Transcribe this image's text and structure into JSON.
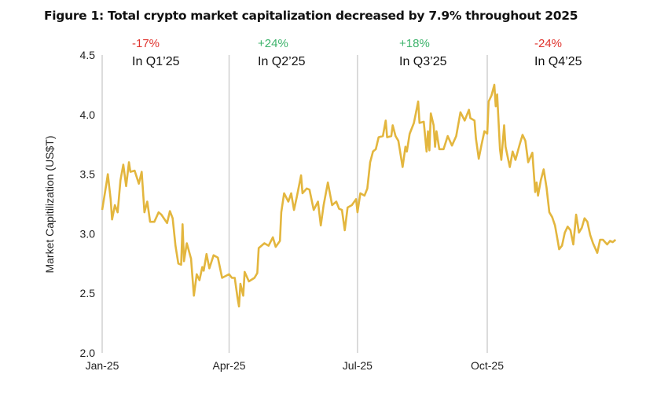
{
  "title": "Figure 1: Total crypto market capitalization decreased by 7.9% throughout 2025",
  "colors": {
    "line": "#E3B63E",
    "negative": "#E0342E",
    "positive": "#3DB36B",
    "quarter_line": "#D0D0D0"
  },
  "chart_data": {
    "type": "line",
    "title": "Figure 1: Total crypto market capitalization decreased by 7.9% throughout 2025",
    "xlabel": "",
    "ylabel": "Market Capitilization (US$T)",
    "ylim": [
      2.0,
      4.5
    ],
    "yticks": [
      "2.0",
      "2.5",
      "3.0",
      "3.5",
      "4.0",
      "4.5"
    ],
    "xlim": [
      "2025-01-01",
      "2025-12-31"
    ],
    "xticks": [
      {
        "date": "2025-01-01",
        "label": "Jan-25"
      },
      {
        "date": "2025-04-01",
        "label": "Apr-25"
      },
      {
        "date": "2025-07-01",
        "label": "Jul-25"
      },
      {
        "date": "2025-10-01",
        "label": "Oct-25"
      }
    ],
    "grid": false,
    "annotations": [
      {
        "change": "-17%",
        "label": "In Q1’25",
        "sign": "negative"
      },
      {
        "change": "+24%",
        "label": "In Q2’25",
        "sign": "positive"
      },
      {
        "change": "+18%",
        "label": "In Q3’25",
        "sign": "positive"
      },
      {
        "change": "-24%",
        "label": "In Q4’25",
        "sign": "negative"
      }
    ],
    "series": [
      {
        "x": [
          "2025-01-01",
          "2025-01-04",
          "2025-01-05",
          "2025-01-07",
          "2025-01-08",
          "2025-01-10",
          "2025-01-12",
          "2025-01-14",
          "2025-01-16",
          "2025-01-18",
          "2025-01-20",
          "2025-01-21",
          "2025-01-24",
          "2025-01-27",
          "2025-01-29",
          "2025-01-31",
          "2025-02-02",
          "2025-02-04",
          "2025-02-07",
          "2025-02-10",
          "2025-02-12",
          "2025-02-16",
          "2025-02-18",
          "2025-02-20",
          "2025-02-22",
          "2025-02-24",
          "2025-02-26",
          "2025-02-27",
          "2025-02-28",
          "2025-03-02",
          "2025-03-05",
          "2025-03-07",
          "2025-03-09",
          "2025-03-11",
          "2025-03-13",
          "2025-03-14",
          "2025-03-16",
          "2025-03-18",
          "2025-03-21",
          "2025-03-24",
          "2025-03-27",
          "2025-04-01",
          "2025-04-03",
          "2025-04-05",
          "2025-04-07",
          "2025-04-08",
          "2025-04-09",
          "2025-04-11",
          "2025-04-12",
          "2025-04-15",
          "2025-04-19",
          "2025-04-21",
          "2025-04-22",
          "2025-04-26",
          "2025-04-29",
          "2025-05-02",
          "2025-05-04",
          "2025-05-07",
          "2025-05-08",
          "2025-05-10",
          "2025-05-13",
          "2025-05-15",
          "2025-05-17",
          "2025-05-19",
          "2025-05-22",
          "2025-05-23",
          "2025-05-26",
          "2025-05-28",
          "2025-05-31",
          "2025-06-03",
          "2025-06-05",
          "2025-06-07",
          "2025-06-10",
          "2025-06-13",
          "2025-06-16",
          "2025-06-18",
          "2025-06-20",
          "2025-06-22",
          "2025-06-24",
          "2025-06-27",
          "2025-06-30",
          "2025-07-01",
          "2025-07-03",
          "2025-07-06",
          "2025-07-08",
          "2025-07-10",
          "2025-07-12",
          "2025-07-14",
          "2025-07-16",
          "2025-07-19",
          "2025-07-21",
          "2025-07-22",
          "2025-07-25",
          "2025-07-26",
          "2025-07-28",
          "2025-07-30",
          "2025-08-02",
          "2025-08-04",
          "2025-08-05",
          "2025-08-07",
          "2025-08-10",
          "2025-08-13",
          "2025-08-14",
          "2025-08-17",
          "2025-08-19",
          "2025-08-20",
          "2025-08-21",
          "2025-08-22",
          "2025-08-24",
          "2025-08-25",
          "2025-08-26",
          "2025-08-28",
          "2025-08-31",
          "2025-09-03",
          "2025-09-06",
          "2025-09-09",
          "2025-09-12",
          "2025-09-15",
          "2025-09-18",
          "2025-09-19",
          "2025-09-22",
          "2025-09-23",
          "2025-09-25",
          "2025-09-27",
          "2025-09-29",
          "2025-10-01",
          "2025-10-02",
          "2025-10-04",
          "2025-10-06",
          "2025-10-07",
          "2025-10-08",
          "2025-10-10",
          "2025-10-11",
          "2025-10-13",
          "2025-10-14",
          "2025-10-17",
          "2025-10-19",
          "2025-10-21",
          "2025-10-24",
          "2025-10-26",
          "2025-10-28",
          "2025-10-30",
          "2025-11-02",
          "2025-11-04",
          "2025-11-05",
          "2025-11-06",
          "2025-11-08",
          "2025-11-10",
          "2025-11-12",
          "2025-11-14",
          "2025-11-16",
          "2025-11-18",
          "2025-11-20",
          "2025-11-21",
          "2025-11-23",
          "2025-11-25",
          "2025-11-27",
          "2025-11-29",
          "2025-12-01",
          "2025-12-03",
          "2025-12-05",
          "2025-12-07",
          "2025-12-09",
          "2025-12-11",
          "2025-12-13",
          "2025-12-15",
          "2025-12-18",
          "2025-12-20",
          "2025-12-22",
          "2025-12-25",
          "2025-12-27",
          "2025-12-29",
          "2025-12-31"
        ],
        "values": [
          3.2,
          3.42,
          3.5,
          3.29,
          3.12,
          3.24,
          3.18,
          3.45,
          3.58,
          3.4,
          3.6,
          3.52,
          3.53,
          3.42,
          3.52,
          3.18,
          3.27,
          3.1,
          3.1,
          3.18,
          3.16,
          3.09,
          3.19,
          3.13,
          2.9,
          2.75,
          2.74,
          3.08,
          2.77,
          2.92,
          2.79,
          2.48,
          2.66,
          2.61,
          2.72,
          2.69,
          2.83,
          2.71,
          2.82,
          2.8,
          2.63,
          2.66,
          2.63,
          2.63,
          2.46,
          2.39,
          2.58,
          2.48,
          2.68,
          2.6,
          2.63,
          2.67,
          2.88,
          2.92,
          2.9,
          2.97,
          2.89,
          2.94,
          3.18,
          3.34,
          3.27,
          3.34,
          3.2,
          3.31,
          3.49,
          3.34,
          3.38,
          3.37,
          3.2,
          3.27,
          3.07,
          3.24,
          3.43,
          3.24,
          3.27,
          3.21,
          3.2,
          3.03,
          3.22,
          3.24,
          3.29,
          3.18,
          3.34,
          3.32,
          3.38,
          3.6,
          3.69,
          3.71,
          3.81,
          3.82,
          3.95,
          3.81,
          3.82,
          3.91,
          3.82,
          3.78,
          3.56,
          3.73,
          3.69,
          3.84,
          3.93,
          4.11,
          3.93,
          3.94,
          3.69,
          3.86,
          3.7,
          4.01,
          3.91,
          3.73,
          3.86,
          3.71,
          3.71,
          3.82,
          3.74,
          3.82,
          4.02,
          3.95,
          4.04,
          3.97,
          3.95,
          3.8,
          3.63,
          3.75,
          3.86,
          3.84,
          4.11,
          4.16,
          4.25,
          4.07,
          4.17,
          3.71,
          3.62,
          3.91,
          3.73,
          3.56,
          3.69,
          3.62,
          3.75,
          3.83,
          3.78,
          3.6,
          3.68,
          3.35,
          3.43,
          3.32,
          3.45,
          3.54,
          3.39,
          3.18,
          3.14,
          3.07,
          2.94,
          2.87,
          2.9,
          3.01,
          3.06,
          3.03,
          2.91,
          3.16,
          3.01,
          3.05,
          3.13,
          3.1,
          2.99,
          2.92,
          2.84,
          2.95,
          2.95,
          2.91,
          2.94,
          2.93,
          2.95
        ]
      }
    ]
  }
}
